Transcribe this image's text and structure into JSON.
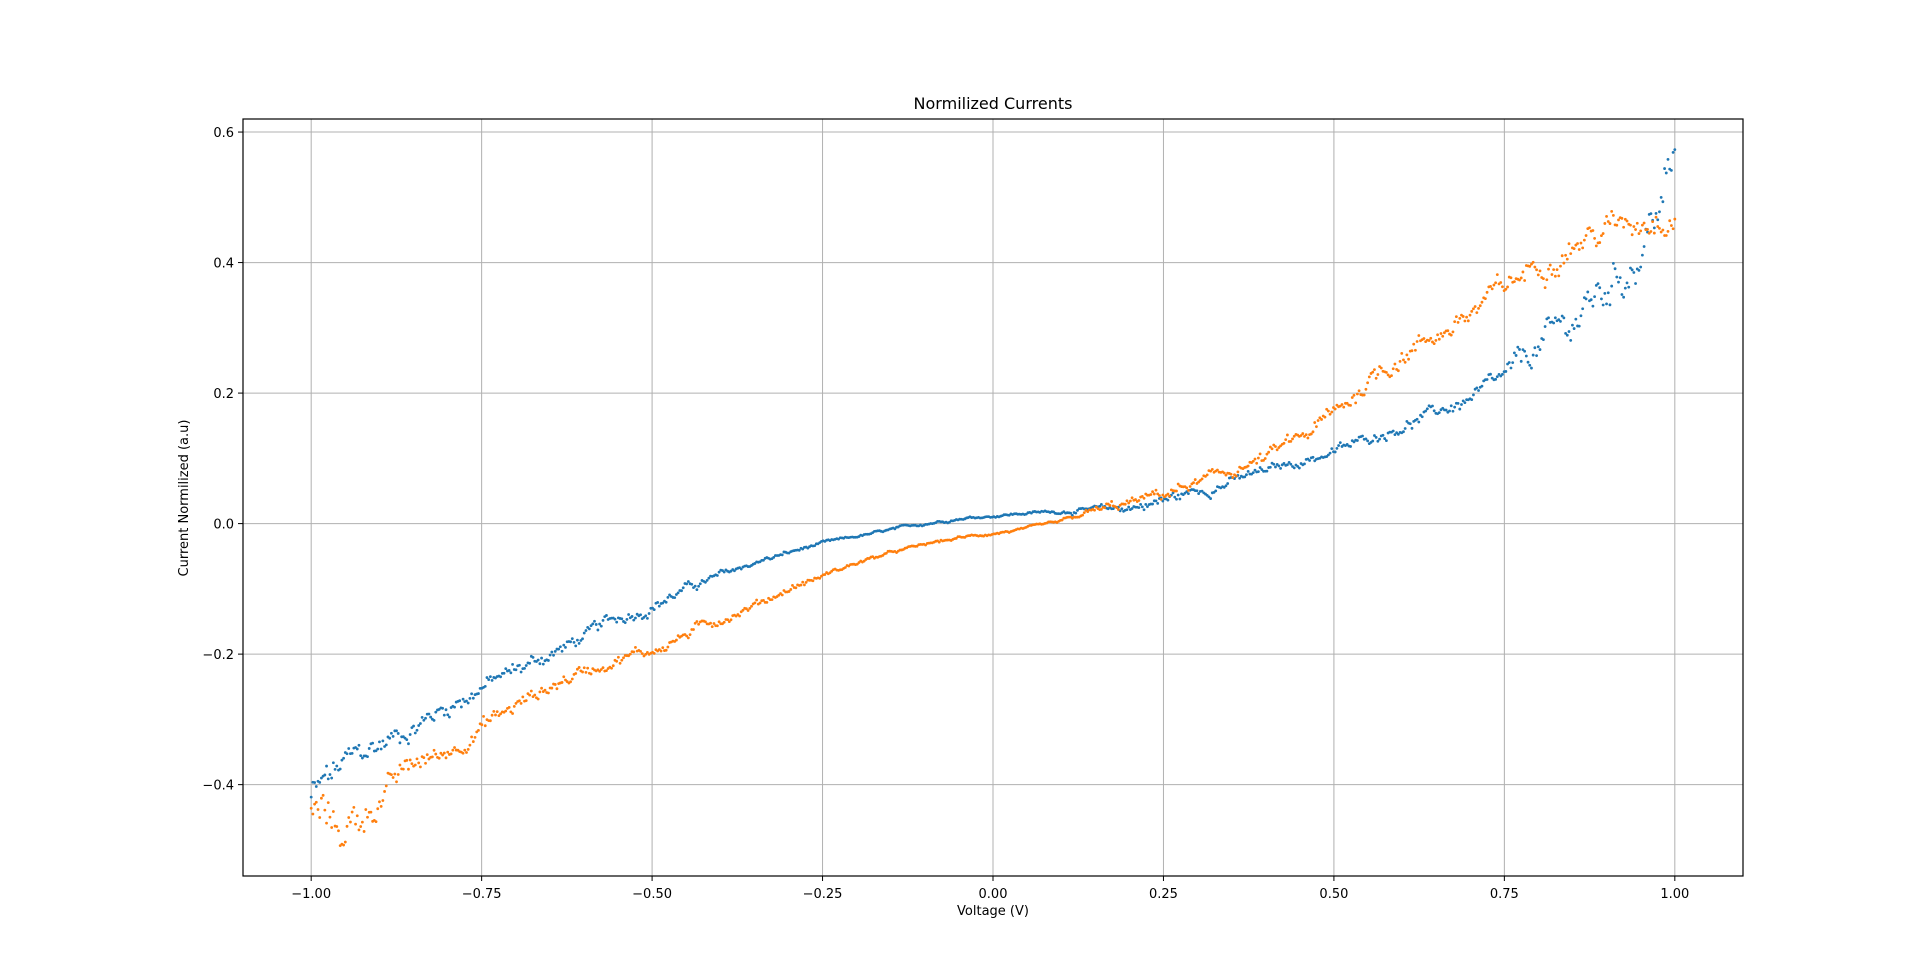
{
  "chart_data": {
    "type": "scatter",
    "title": "Normilized Currents",
    "xlabel": "Voltage (V)",
    "ylabel": "Current Normilized (a.u)",
    "xlim": [
      -1.1,
      1.1
    ],
    "ylim": [
      -0.54,
      0.62
    ],
    "xticks": [
      -1.0,
      -0.75,
      -0.5,
      -0.25,
      0.0,
      0.25,
      0.5,
      0.75,
      1.0
    ],
    "xtick_labels": [
      "−1.00",
      "−0.75",
      "−0.50",
      "−0.25",
      "0.00",
      "0.25",
      "0.50",
      "0.75",
      "1.00"
    ],
    "yticks": [
      -0.4,
      -0.2,
      0.0,
      0.2,
      0.4,
      0.6
    ],
    "ytick_labels": [
      "−0.4",
      "−0.2",
      "0.0",
      "0.2",
      "0.4",
      "0.6"
    ],
    "grid": true,
    "legend": false,
    "colors": [
      "#1f77b4",
      "#ff7f0e"
    ],
    "points_per_series": 800,
    "series": [
      {
        "color": "#1f77b4",
        "x": [
          -1.0,
          -0.95,
          -0.9,
          -0.85,
          -0.8,
          -0.75,
          -0.7,
          -0.65,
          -0.6,
          -0.55,
          -0.5,
          -0.45,
          -0.4,
          -0.35,
          -0.3,
          -0.25,
          -0.2,
          -0.15,
          -0.1,
          -0.05,
          0.0,
          0.05,
          0.1,
          0.15,
          0.2,
          0.25,
          0.3,
          0.35,
          0.4,
          0.45,
          0.5,
          0.55,
          0.6,
          0.65,
          0.7,
          0.75,
          0.8,
          0.85,
          0.9,
          0.95,
          1.0
        ],
        "y": [
          -0.42,
          -0.37,
          -0.34,
          -0.31,
          -0.28,
          -0.25,
          -0.225,
          -0.2,
          -0.175,
          -0.145,
          -0.125,
          -0.1,
          -0.08,
          -0.06,
          -0.045,
          -0.03,
          -0.02,
          -0.01,
          0.0,
          0.008,
          0.012,
          0.016,
          0.019,
          0.021,
          0.025,
          0.035,
          0.05,
          0.065,
          0.08,
          0.095,
          0.11,
          0.13,
          0.15,
          0.17,
          0.19,
          0.22,
          0.27,
          0.31,
          0.36,
          0.42,
          0.55
        ],
        "noise": [
          0.03,
          0.02,
          0.018,
          0.014,
          0.014,
          0.012,
          0.012,
          0.01,
          0.01,
          0.01,
          0.008,
          0.007,
          0.005,
          0.004,
          0.003,
          0.002,
          0.002,
          0.002,
          0.002,
          0.002,
          0.002,
          0.002,
          0.003,
          0.004,
          0.008,
          0.01,
          0.008,
          0.007,
          0.007,
          0.007,
          0.007,
          0.007,
          0.008,
          0.009,
          0.01,
          0.015,
          0.022,
          0.028,
          0.03,
          0.035,
          0.04
        ]
      },
      {
        "color": "#ff7f0e",
        "x": [
          -1.0,
          -0.95,
          -0.9,
          -0.85,
          -0.8,
          -0.75,
          -0.7,
          -0.65,
          -0.6,
          -0.55,
          -0.5,
          -0.45,
          -0.4,
          -0.35,
          -0.3,
          -0.25,
          -0.2,
          -0.15,
          -0.1,
          -0.05,
          0.0,
          0.05,
          0.1,
          0.15,
          0.2,
          0.25,
          0.3,
          0.35,
          0.4,
          0.45,
          0.5,
          0.55,
          0.6,
          0.65,
          0.7,
          0.75,
          0.8,
          0.85,
          0.9,
          0.95,
          1.0
        ],
        "y": [
          -0.44,
          -0.47,
          -0.42,
          -0.37,
          -0.35,
          -0.31,
          -0.28,
          -0.25,
          -0.225,
          -0.205,
          -0.195,
          -0.17,
          -0.145,
          -0.125,
          -0.1,
          -0.08,
          -0.06,
          -0.045,
          -0.032,
          -0.022,
          -0.015,
          -0.008,
          0.002,
          0.02,
          0.03,
          0.045,
          0.062,
          0.08,
          0.1,
          0.13,
          0.165,
          0.22,
          0.26,
          0.29,
          0.32,
          0.36,
          0.4,
          0.43,
          0.45,
          0.47,
          0.485
        ],
        "noise": [
          0.03,
          0.03,
          0.02,
          0.015,
          0.012,
          0.012,
          0.012,
          0.01,
          0.01,
          0.008,
          0.008,
          0.008,
          0.007,
          0.006,
          0.005,
          0.004,
          0.003,
          0.002,
          0.002,
          0.002,
          0.002,
          0.002,
          0.003,
          0.005,
          0.008,
          0.008,
          0.008,
          0.008,
          0.01,
          0.012,
          0.014,
          0.015,
          0.014,
          0.014,
          0.016,
          0.018,
          0.018,
          0.018,
          0.02,
          0.022,
          0.025
        ]
      }
    ]
  }
}
